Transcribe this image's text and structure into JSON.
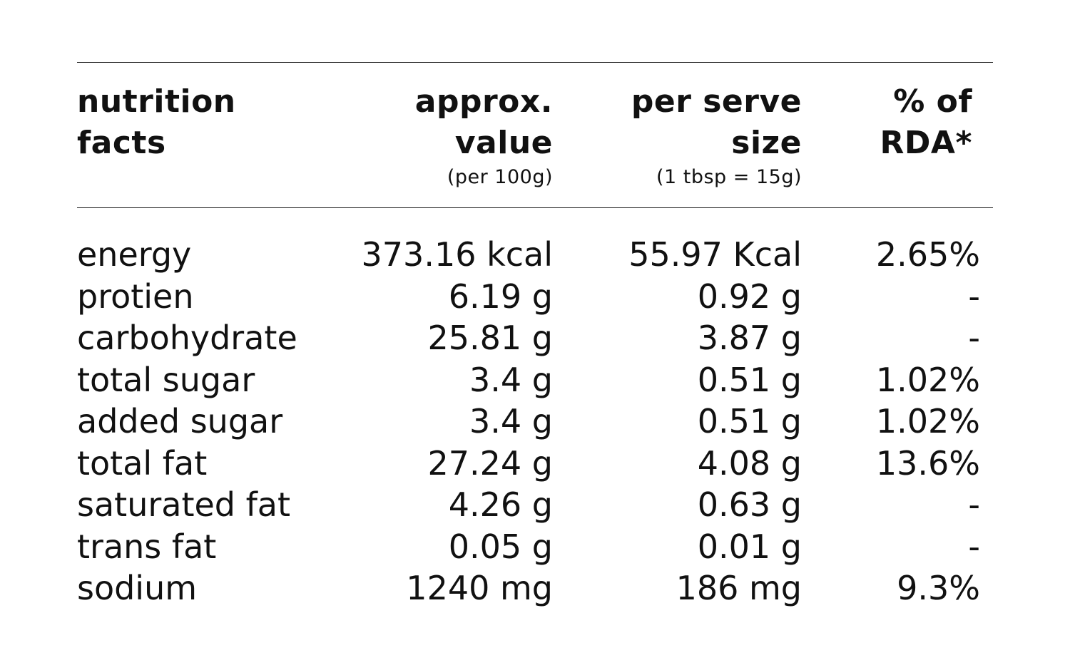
{
  "header": {
    "col1": [
      "nutrition",
      "facts"
    ],
    "col2": [
      "approx.",
      "value"
    ],
    "col2_sub": "(per 100g)",
    "col3": [
      "per serve",
      "size"
    ],
    "col3_sub": "(1 tbsp = 15g)",
    "col4": [
      "% of",
      "RDA*"
    ]
  },
  "rows": [
    {
      "name": "energy",
      "per100": "373.16 kcal",
      "perServe": "55.97 Kcal",
      "rda": "2.65%"
    },
    {
      "name": "protien",
      "per100": "6.19 g",
      "perServe": "0.92 g",
      "rda": "-"
    },
    {
      "name": "carbohydrate",
      "per100": "25.81 g",
      "perServe": "3.87 g",
      "rda": "-"
    },
    {
      "name": "total sugar",
      "per100": "3.4 g",
      "perServe": "0.51 g",
      "rda": "1.02%"
    },
    {
      "name": "added sugar",
      "per100": "3.4 g",
      "perServe": "0.51 g",
      "rda": "1.02%"
    },
    {
      "name": "total fat",
      "per100": "27.24 g",
      "perServe": "4.08 g",
      "rda": "13.6%"
    },
    {
      "name": "saturated fat",
      "per100": "4.26 g",
      "perServe": "0.63 g",
      "rda": "-"
    },
    {
      "name": "trans fat",
      "per100": "0.05 g",
      "perServe": "0.01 g",
      "rda": "-"
    },
    {
      "name": "sodium",
      "per100": "1240 mg",
      "perServe": "186 mg",
      "rda": "9.3%"
    }
  ]
}
